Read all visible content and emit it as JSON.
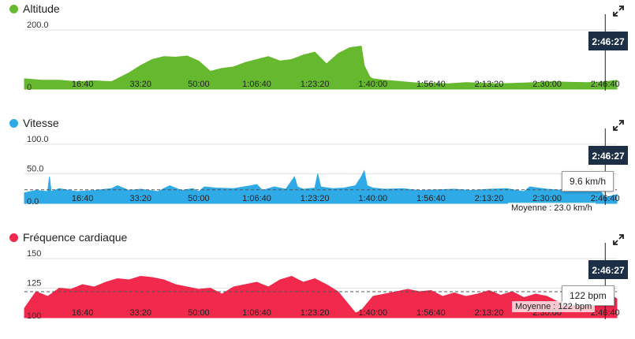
{
  "chart_data": [
    {
      "type": "area",
      "title": "Altitude",
      "color": "#66b82e",
      "ylim": [
        0,
        200
      ],
      "yticks": [
        "200.0",
        "0"
      ],
      "ytick_values": [
        200,
        0
      ],
      "x_tick_labels": [
        "16:40",
        "33:20",
        "50:00",
        "1:06:40",
        "1:23:20",
        "1:40:00",
        "1:56:40",
        "2:13:20",
        "2:30:00",
        "2:46:40"
      ],
      "x_tick_values": [
        1000,
        2000,
        3000,
        4000,
        5000,
        6000,
        7000,
        8000,
        9000,
        10000
      ],
      "xlim": [
        0,
        10200
      ],
      "cursor_time": "2:46:27",
      "cursor_x": 10000,
      "x": [
        0,
        300,
        600,
        900,
        1200,
        1500,
        1800,
        2000,
        2200,
        2400,
        2600,
        2800,
        3000,
        3200,
        3400,
        3600,
        3800,
        4000,
        4200,
        4400,
        4600,
        4800,
        5000,
        5200,
        5400,
        5600,
        5800,
        5850,
        5950,
        6000,
        6200,
        6500,
        6800,
        7000,
        7300,
        7600,
        7900,
        8200,
        8500,
        8800,
        9100,
        9400,
        9700,
        10000,
        10200
      ],
      "values": [
        35,
        30,
        30,
        25,
        28,
        25,
        55,
        80,
        100,
        110,
        108,
        112,
        95,
        60,
        70,
        75,
        90,
        100,
        110,
        95,
        100,
        115,
        125,
        85,
        120,
        140,
        145,
        80,
        40,
        35,
        30,
        25,
        20,
        20,
        18,
        22,
        20,
        18,
        20,
        22,
        25,
        23,
        22,
        25,
        30
      ]
    },
    {
      "type": "area",
      "title": "Vitesse",
      "color": "#2eaae6",
      "ylim": [
        0,
        100
      ],
      "yticks": [
        "100.0",
        "50.0",
        "0.0"
      ],
      "ytick_values": [
        100,
        50,
        0
      ],
      "x_tick_labels": [
        "16:40",
        "33:20",
        "50:00",
        "1:06:40",
        "1:23:20",
        "1:40:00",
        "1:56:40",
        "2:13:20",
        "2:30:00",
        "2:46:40"
      ],
      "x_tick_values": [
        1000,
        2000,
        3000,
        4000,
        5000,
        6000,
        7000,
        8000,
        9000,
        10000
      ],
      "xlim": [
        0,
        10200
      ],
      "cursor_time": "2:46:27",
      "cursor_x": 10000,
      "tooltip": "9.6 km/h",
      "average": 23.0,
      "average_label": "Moyenne : 23.0 km/h",
      "x": [
        0,
        200,
        400,
        430,
        460,
        600,
        900,
        1200,
        1500,
        1600,
        1800,
        2000,
        2300,
        2500,
        2700,
        2900,
        3000,
        3100,
        3300,
        3600,
        3900,
        4000,
        4100,
        4300,
        4500,
        4650,
        4700,
        4800,
        5000,
        5050,
        5100,
        5300,
        5500,
        5700,
        5800,
        5850,
        5900,
        6000,
        6200,
        6500,
        6800,
        7100,
        7400,
        7700,
        8000,
        8300,
        8600,
        8700,
        9000,
        9300,
        9600,
        9900,
        10000,
        10200
      ],
      "values": [
        18,
        22,
        20,
        45,
        20,
        25,
        20,
        22,
        25,
        30,
        22,
        24,
        20,
        30,
        22,
        25,
        20,
        28,
        26,
        25,
        30,
        32,
        22,
        28,
        24,
        45,
        28,
        24,
        26,
        50,
        28,
        25,
        26,
        30,
        45,
        55,
        30,
        26,
        24,
        25,
        22,
        23,
        24,
        22,
        24,
        25,
        20,
        28,
        24,
        22,
        24,
        23,
        10,
        15
      ]
    },
    {
      "type": "area",
      "title": "Fréquence cardiaque",
      "color": "#f0294d",
      "ylim": [
        100,
        150
      ],
      "yticks": [
        "150",
        "125",
        "100"
      ],
      "ytick_values": [
        150,
        125,
        100
      ],
      "x_tick_labels": [
        "16:40",
        "33:20",
        "50:00",
        "1:06:40",
        "1:23:20",
        "1:40:00",
        "1:56:40",
        "2:13:20",
        "2:30:00",
        "2:46:40"
      ],
      "x_tick_values": [
        1000,
        2000,
        3000,
        4000,
        5000,
        6000,
        7000,
        8000,
        9000,
        10000
      ],
      "xlim": [
        0,
        10200
      ],
      "cursor_time": "2:46:27",
      "cursor_x": 10000,
      "tooltip": "122 bpm",
      "average": 122,
      "average_label": "Moyenne : 122 bpm",
      "x": [
        0,
        200,
        400,
        600,
        800,
        1000,
        1200,
        1400,
        1600,
        1800,
        2000,
        2200,
        2400,
        2600,
        2800,
        3000,
        3200,
        3400,
        3600,
        3800,
        4000,
        4200,
        4400,
        4600,
        4800,
        5000,
        5200,
        5400,
        5600,
        5700,
        5800,
        5900,
        6000,
        6200,
        6400,
        6600,
        6800,
        7000,
        7200,
        7400,
        7600,
        7800,
        8000,
        8200,
        8400,
        8600,
        8800,
        9000,
        9200,
        9400,
        9600,
        9800,
        10000,
        10200
      ],
      "values": [
        108,
        122,
        118,
        125,
        124,
        128,
        126,
        130,
        133,
        132,
        135,
        134,
        132,
        128,
        126,
        124,
        125,
        120,
        126,
        128,
        130,
        126,
        132,
        135,
        130,
        133,
        128,
        122,
        110,
        104,
        106,
        112,
        118,
        120,
        122,
        124,
        122,
        123,
        118,
        121,
        118,
        120,
        123,
        119,
        122,
        117,
        120,
        118,
        113,
        115,
        120,
        116,
        122,
        116
      ]
    }
  ]
}
